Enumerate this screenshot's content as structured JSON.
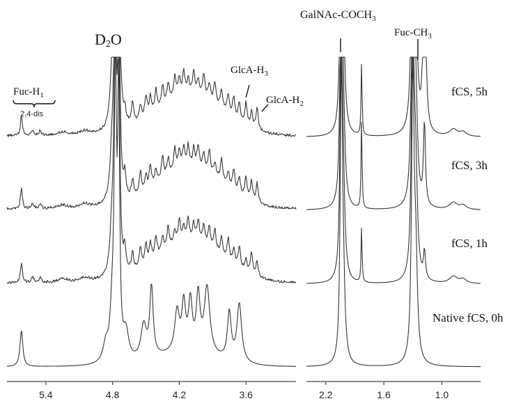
{
  "chart_data": {
    "type": "line",
    "x_unit": "ppm",
    "axis_reversed": true,
    "axis_break": true,
    "regions": [
      {
        "name": "left",
        "xlim": [
          5.75,
          3.15
        ],
        "ticks": [
          5.4,
          4.8,
          4.2,
          3.6
        ]
      },
      {
        "name": "right",
        "xlim": [
          2.4,
          0.6
        ],
        "ticks": [
          2.2,
          1.6,
          1.0
        ]
      }
    ],
    "tick_labels": [
      "5.4",
      "4.8",
      "4.2",
      "3.6",
      "2.2",
      "1.6",
      "1.0"
    ],
    "series": [
      {
        "name": "fCS, 5h",
        "pos": 0,
        "sharp": [
          {
            "x": 5.62,
            "h": 30
          },
          {
            "x": 1.83,
            "h": 105
          }
        ]
      },
      {
        "name": "fCS, 3h",
        "pos": 1,
        "sharp": [
          {
            "x": 5.62,
            "h": 32
          },
          {
            "x": 1.83,
            "h": 128
          }
        ]
      },
      {
        "name": "fCS, 1h",
        "pos": 2,
        "sharp": [
          {
            "x": 5.62,
            "h": 32
          },
          {
            "x": 1.83,
            "h": 80
          }
        ]
      },
      {
        "name": "Native fCS, 0h",
        "pos": 3,
        "sharp": [
          {
            "x": 5.62,
            "h": 52
          }
        ]
      }
    ],
    "annotations": [
      {
        "text": "Fuc-H1",
        "base": "Fuc-H",
        "sub": "1",
        "x": 5.62
      },
      {
        "text": "2,4-dis",
        "x": 5.55
      },
      {
        "text": "D2O",
        "base": "D",
        "sub": "2",
        "tail": "O",
        "x": 4.78
      },
      {
        "text": "GlcA-H3",
        "base": "GlcA-H",
        "sub": "3",
        "x": 3.66
      },
      {
        "text": "GlcA-H2",
        "base": "GlcA-H",
        "sub": "2",
        "x": 3.56
      },
      {
        "text": "GalNAc-COCH3",
        "base": "GalNAc-COCH",
        "sub": "3",
        "x": 2.04
      },
      {
        "text": "Fuc-CH3",
        "base": "Fuc-CH",
        "sub": "3",
        "x": 1.28
      }
    ]
  }
}
